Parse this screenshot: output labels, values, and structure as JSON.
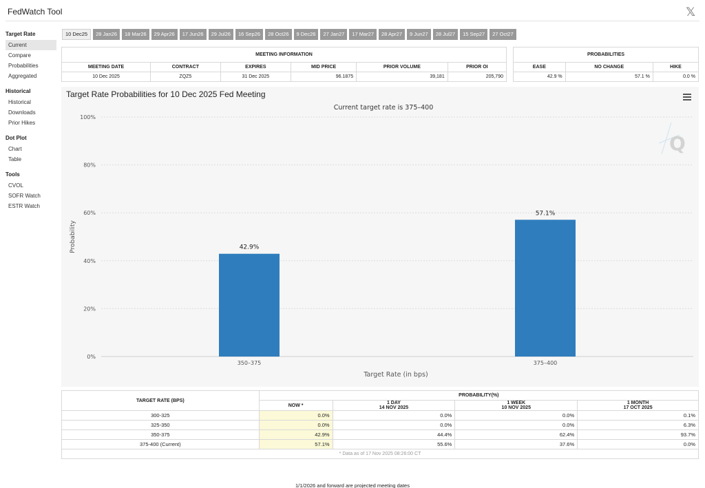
{
  "header": {
    "title": "FedWatch Tool",
    "logo_text": "𝕏"
  },
  "sidebar": {
    "sections": [
      {
        "title": "Target Rate",
        "items": [
          "Current",
          "Compare",
          "Probabilities",
          "Aggregated"
        ]
      },
      {
        "title": "Historical",
        "items": [
          "Historical",
          "Downloads",
          "Prior Hikes"
        ]
      },
      {
        "title": "Dot Plot",
        "items": [
          "Chart",
          "Table"
        ]
      },
      {
        "title": "Tools",
        "items": [
          "CVOL",
          "SOFR Watch",
          "ESTR Watch"
        ]
      }
    ],
    "active": "Current"
  },
  "tabs": [
    "10 Dec25",
    "28 Jan26",
    "18 Mar26",
    "29 Apr26",
    "17 Jun26",
    "29 Jul26",
    "16 Sep26",
    "28 Oct26",
    "9 Dec26",
    "27 Jan27",
    "17 Mar27",
    "28 Apr27",
    "9 Jun27",
    "28 Jul27",
    "15 Sep27",
    "27 Oct27"
  ],
  "active_tab": "10 Dec25",
  "meeting_info": {
    "caption": "MEETING INFORMATION",
    "headers": [
      "MEETING DATE",
      "CONTRACT",
      "EXPIRES",
      "MID PRICE",
      "PRIOR VOLUME",
      "PRIOR OI"
    ],
    "row": [
      "10 Dec 2025",
      "ZQZ5",
      "31 Dec 2025",
      "96.1875",
      "39,181",
      "205,790"
    ]
  },
  "probabilities": {
    "caption": "PROBABILITIES",
    "headers": [
      "EASE",
      "NO CHANGE",
      "HIKE"
    ],
    "row": [
      "42.9 %",
      "57.1 %",
      "0.0 %"
    ]
  },
  "chart": {
    "heading": "Target Rate Probabilities for 10 Dec 2025 Fed Meeting",
    "menu_icon": "hamburger-menu-icon",
    "bar_color": "#2f7dbd"
  },
  "chart_data": {
    "type": "bar",
    "title": "Current target rate is 375–400",
    "xlabel": "Target Rate (in bps)",
    "ylabel": "Probability",
    "categories": [
      "350–375",
      "375–400"
    ],
    "values": [
      42.9,
      57.1
    ],
    "value_labels": [
      "42.9%",
      "57.1%"
    ],
    "ylim": [
      0,
      100
    ],
    "yticks": [
      "0%",
      "20%",
      "40%",
      "60%",
      "80%",
      "100%"
    ],
    "grid": true
  },
  "prob_table": {
    "rate_header": "TARGET RATE (BPS)",
    "prob_header": "PROBABILITY(%)",
    "cols": [
      {
        "l1": "NOW *",
        "l2": ""
      },
      {
        "l1": "1 DAY",
        "l2": "14 NOV 2025"
      },
      {
        "l1": "1 WEEK",
        "l2": "10 NOV 2025"
      },
      {
        "l1": "1 MONTH",
        "l2": "17 OCT 2025"
      }
    ],
    "rows": [
      [
        "300-325",
        "0.0%",
        "0.0%",
        "0.0%",
        "0.1%"
      ],
      [
        "325-350",
        "0.0%",
        "0.0%",
        "0.0%",
        "6.3%"
      ],
      [
        "350-375",
        "42.9%",
        "44.4%",
        "62.4%",
        "93.7%"
      ],
      [
        "375-400 (Current)",
        "57.1%",
        "55.6%",
        "37.6%",
        "0.0%"
      ]
    ],
    "note": "* Data as of 17 Nov 2025 08:26:00 CT"
  },
  "footnote": "1/1/2026 and forward are projected meeting dates"
}
